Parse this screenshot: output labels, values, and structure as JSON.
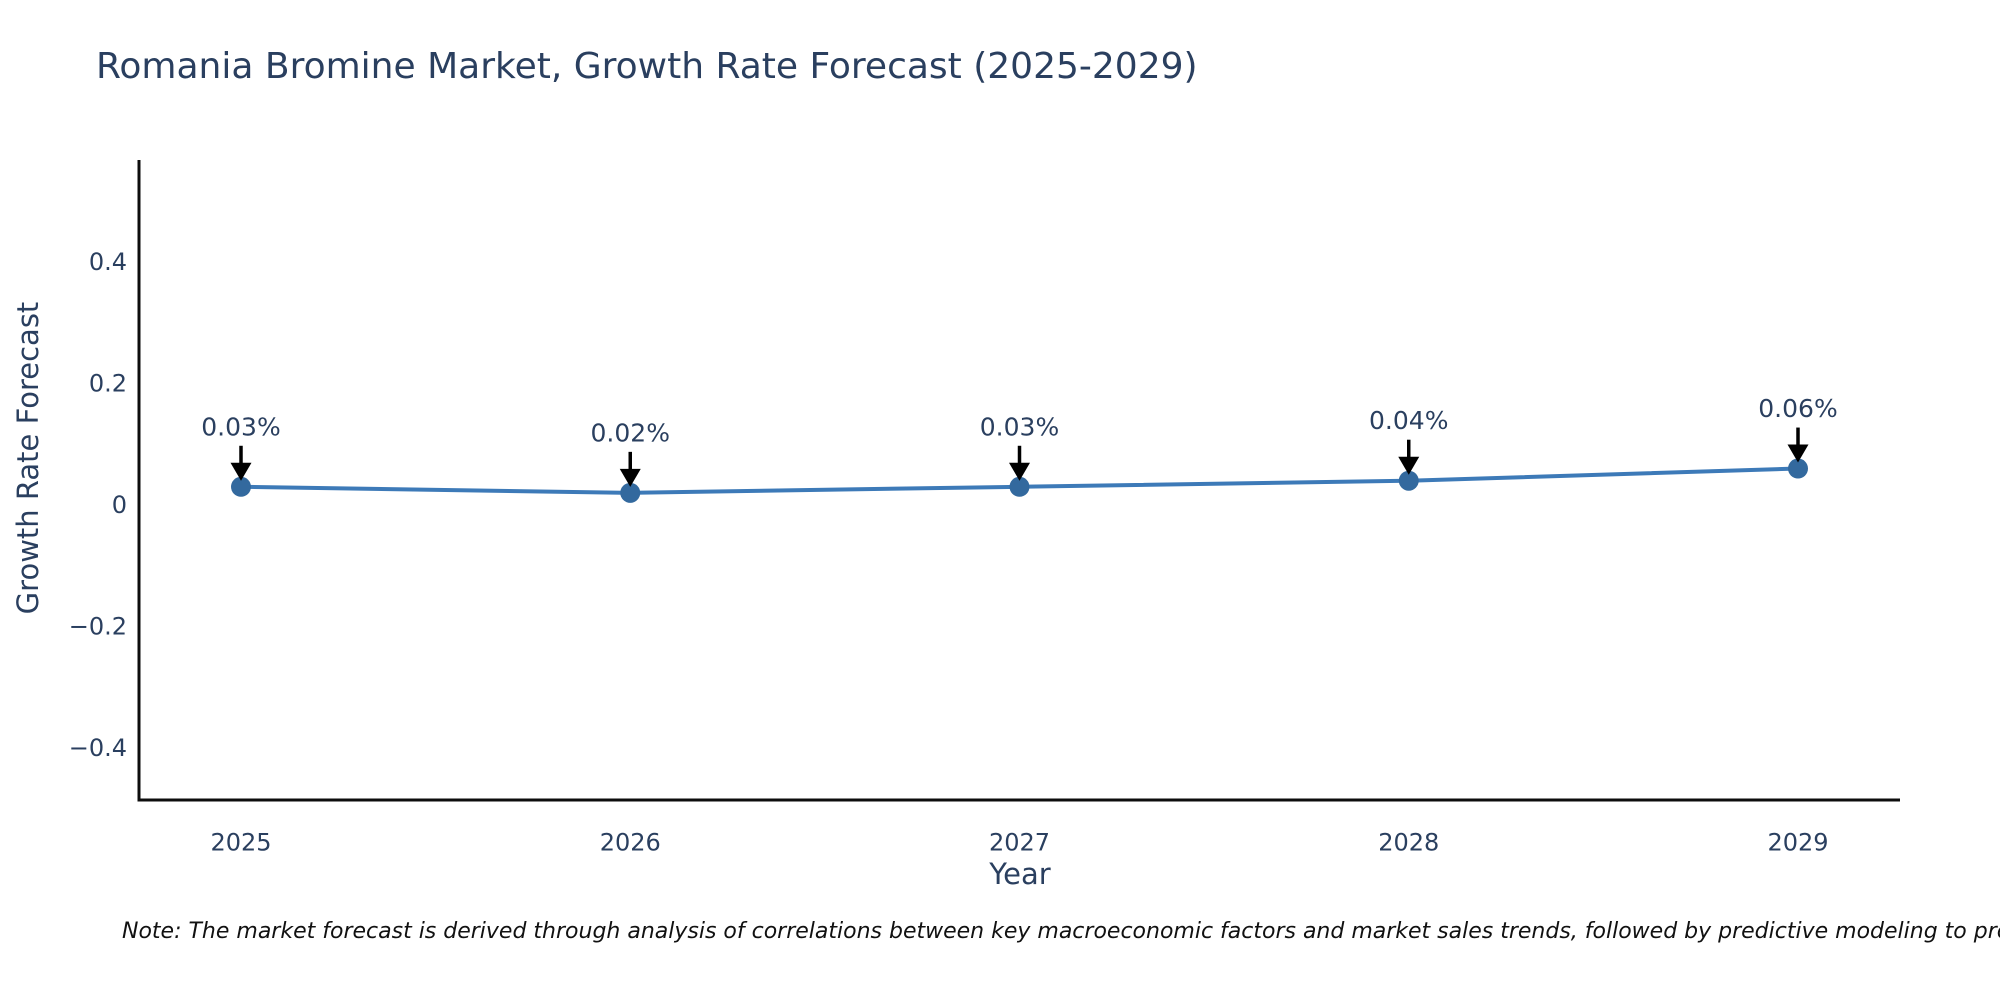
{
  "note": {
    "text": "Note: The market forecast is derived through analysis of correlations between key macroeconomic factors and market sales trends, followed by predictive modeling to project future sales."
  },
  "colors": {
    "title_text": "#2a3f5f",
    "tick_text": "#2a3f5f",
    "axis_line": "#0d0d0d",
    "series_line": "#3d7ab8",
    "marker_fill": "#33699e",
    "annotation_arrow": "#000000",
    "note_text": "#111111",
    "background": "#ffffff"
  },
  "chart_data": {
    "type": "line",
    "title": "Romania Bromine Market, Growth Rate Forecast (2025-2029)",
    "xlabel": "Year",
    "ylabel": "Growth Rate Forecast",
    "categories": [
      "2025",
      "2026",
      "2027",
      "2028",
      "2029"
    ],
    "series": [
      {
        "name": "Growth Rate Forecast",
        "values": [
          0.03,
          0.02,
          0.03,
          0.04,
          0.06
        ]
      }
    ],
    "point_labels": [
      "0.03%",
      "0.02%",
      "0.03%",
      "0.04%",
      "0.06%"
    ],
    "ytick_labels": [
      "0.4",
      "0.2",
      "0",
      "−0.2",
      "−0.4"
    ],
    "ytick_values": [
      0.4,
      0.2,
      0,
      -0.2,
      -0.4
    ],
    "ylim": [
      -0.486,
      0.568
    ],
    "grid": false,
    "legend_position": "none",
    "annotations_style": "value labels with downward arrows above each data point"
  }
}
